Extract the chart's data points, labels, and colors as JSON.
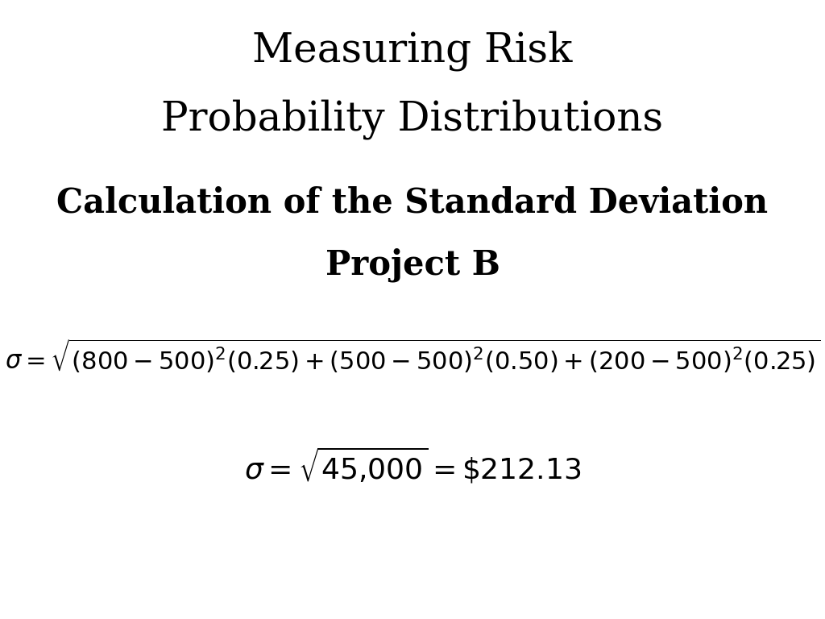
{
  "title_line1": "Measuring Risk",
  "title_line2": "Probability Distributions",
  "subtitle_line1": "Calculation of the Standard Deviation",
  "subtitle_line2": "Project B",
  "background_color": "#ffffff",
  "text_color": "#000000",
  "title_fontsize": 36,
  "subtitle_fontsize": 30,
  "formula_fontsize": 22,
  "formula2_fontsize": 26
}
